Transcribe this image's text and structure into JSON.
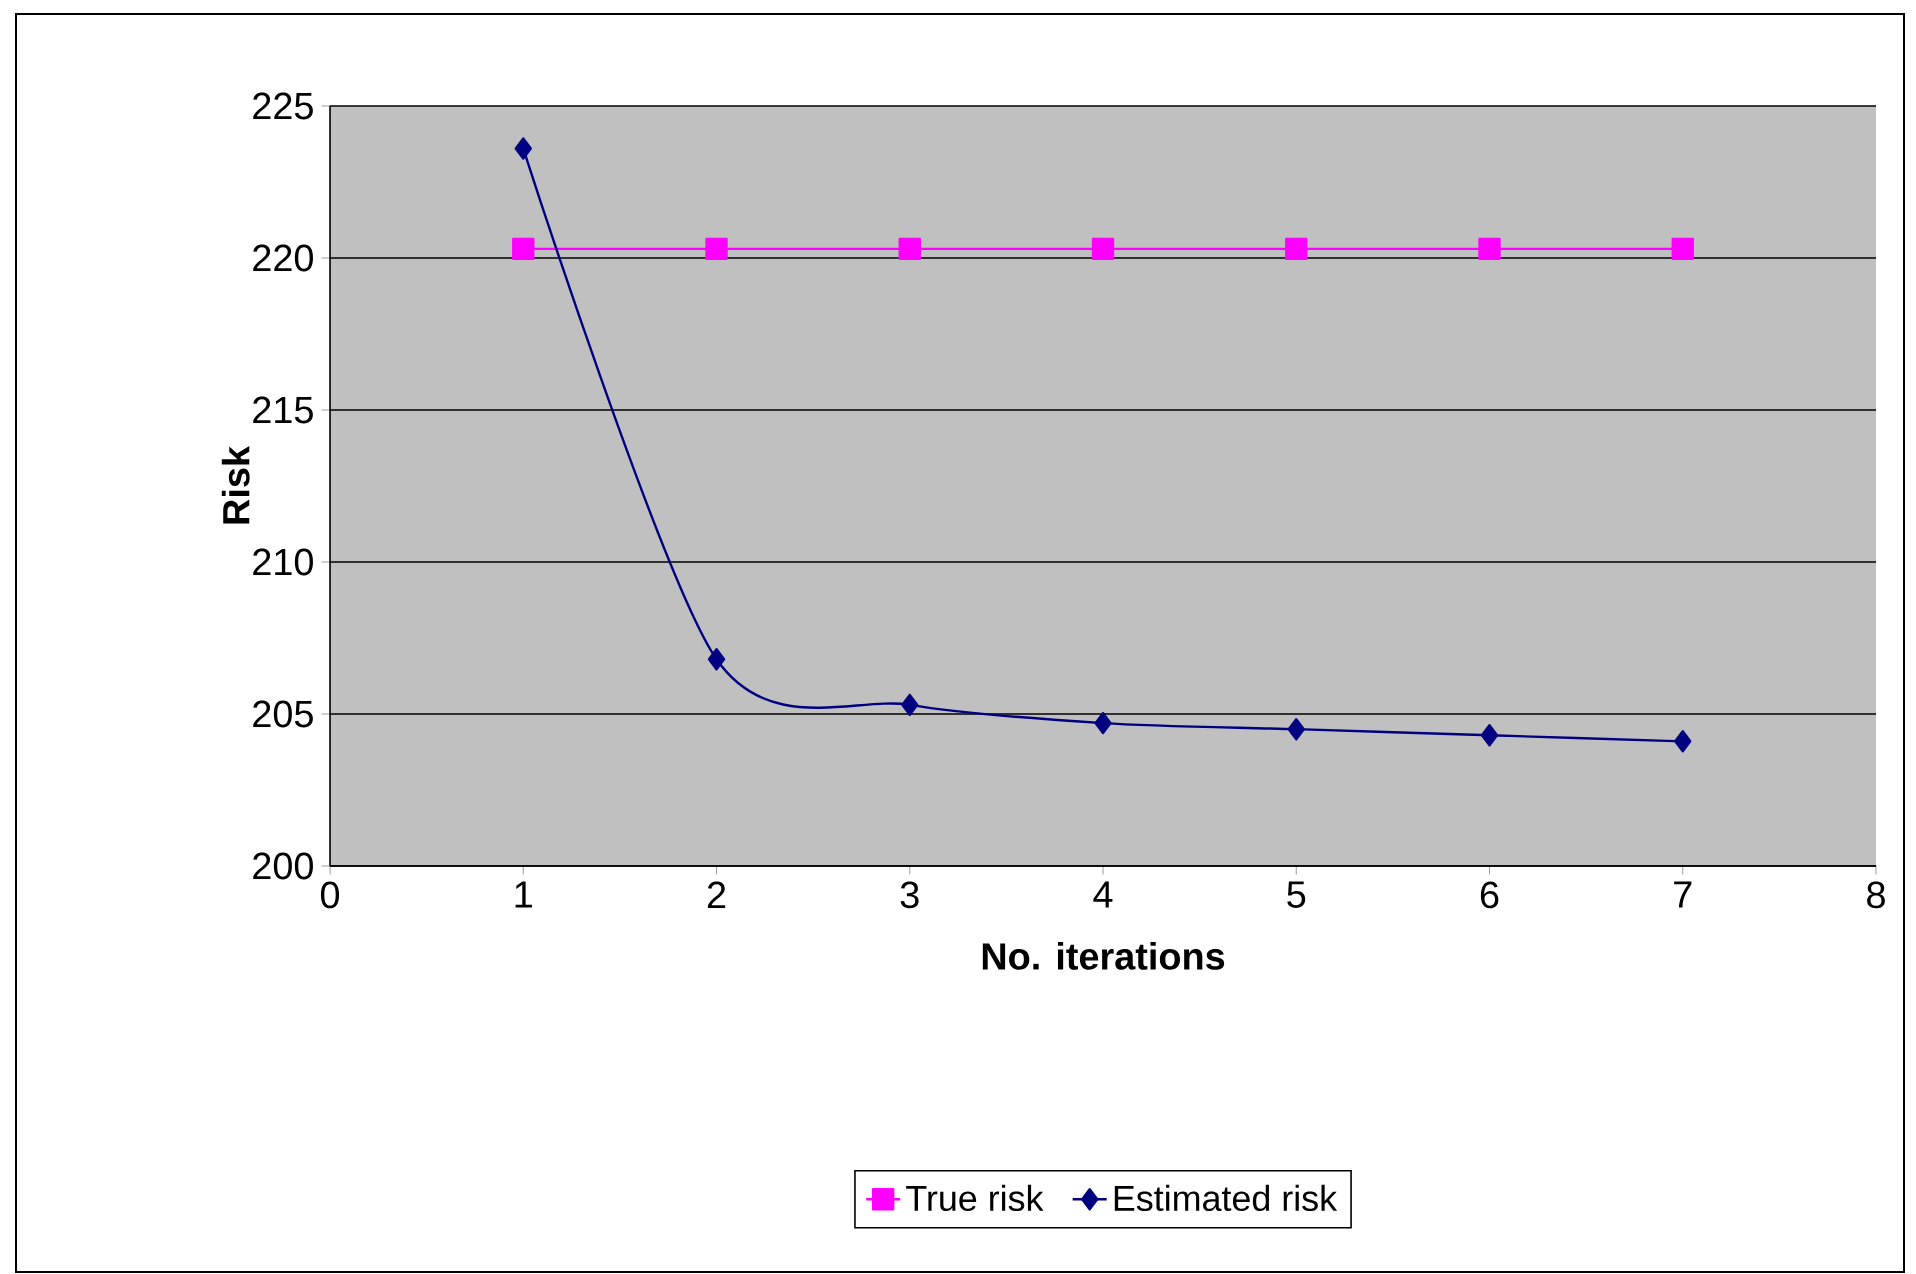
{
  "chart_data": {
    "type": "line",
    "xlabel": "No. iterations",
    "ylabel": "Risk",
    "x": [
      1,
      2,
      3,
      4,
      5,
      6,
      7
    ],
    "series": [
      {
        "name": "True risk",
        "color": "#ff00ff",
        "marker": "square",
        "values": [
          220.3,
          220.3,
          220.3,
          220.3,
          220.3,
          220.3,
          220.3
        ]
      },
      {
        "name": "Estimated risk",
        "color": "#000080",
        "marker": "diamond",
        "values": [
          223.6,
          206.8,
          205.3,
          204.7,
          204.5,
          204.3,
          204.1
        ]
      }
    ],
    "xlim": [
      0,
      8
    ],
    "xticks": [
      0,
      1,
      2,
      3,
      4,
      5,
      6,
      7,
      8
    ],
    "ylim": [
      200,
      225
    ],
    "yticks": [
      200,
      205,
      210,
      215,
      220,
      225
    ],
    "grid": "y",
    "legend": "bottom"
  }
}
